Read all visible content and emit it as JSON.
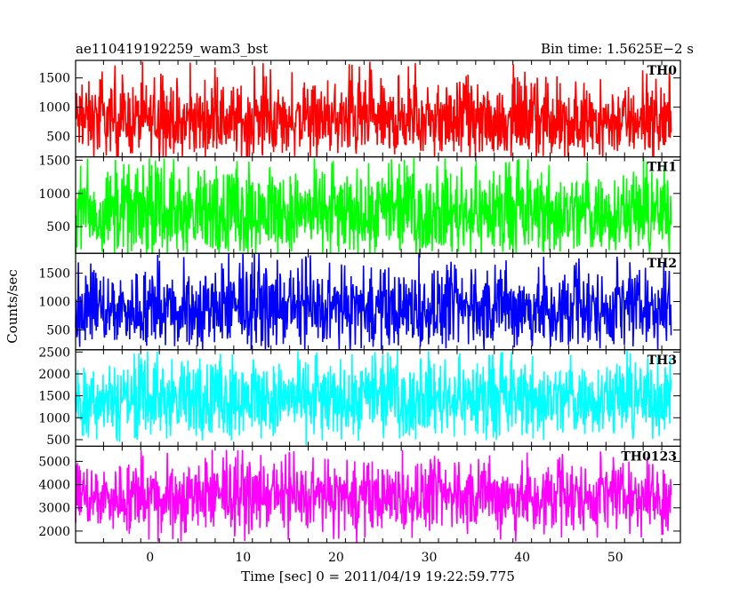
{
  "chart_data": {
    "type": "line",
    "title_left": "ae110419192259_wam3_bst",
    "title_right": "Bin time: 1.5625E−2 s",
    "xlabel": "Time [sec] 0 = 2011/04/19 19:22:59.775",
    "ylabel": "Counts/sec",
    "xlim": [
      -8,
      57
    ],
    "x_data_range": [
      -8,
      56
    ],
    "xticks": [
      0,
      10,
      20,
      30,
      40,
      50
    ],
    "grid": false,
    "series": [
      {
        "name": "TH0",
        "color": "#ff0000",
        "ylim": [
          150,
          1800
        ],
        "yticks": [
          500,
          1000,
          1500
        ],
        "mean": 780,
        "typical_low": 400,
        "typical_high": 1250,
        "min": 250,
        "max": 1800
      },
      {
        "name": "TH1",
        "color": "#00ff00",
        "ylim": [
          100,
          1550
        ],
        "yticks": [
          500,
          1000,
          1500
        ],
        "mean": 720,
        "typical_low": 350,
        "typical_high": 1200,
        "min": 100,
        "max": 1550
      },
      {
        "name": "TH2",
        "color": "#0000ff",
        "ylim": [
          150,
          1850
        ],
        "yticks": [
          500,
          1000,
          1500
        ],
        "mean": 880,
        "typical_low": 450,
        "typical_high": 1350,
        "min": 200,
        "max": 1850
      },
      {
        "name": "TH3",
        "color": "#00ffff",
        "ylim": [
          350,
          2550
        ],
        "yticks": [
          500,
          1000,
          1500,
          2000,
          2500
        ],
        "mean": 1450,
        "typical_low": 900,
        "typical_high": 2050,
        "min": 450,
        "max": 2550
      },
      {
        "name": "TH0123",
        "color": "#ff00ff",
        "ylim": [
          1500,
          5650
        ],
        "yticks": [
          2000,
          3000,
          4000,
          5000
        ],
        "mean": 3500,
        "typical_low": 2600,
        "typical_high": 4500,
        "min": 1500,
        "max": 5500
      }
    ]
  }
}
